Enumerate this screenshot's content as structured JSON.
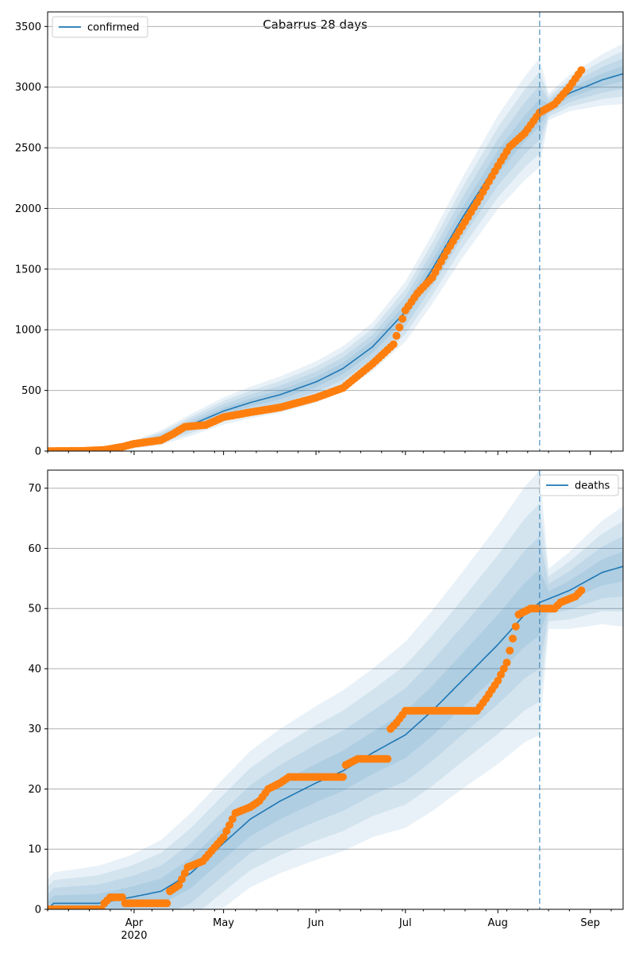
{
  "figure_title": "Cabarrus 28 days",
  "chart_data": [
    {
      "type": "line",
      "name": "confirmed",
      "series_name": "confirmed",
      "x_start": "2020-03-03",
      "x_end": "2020-09-12",
      "ylim": [
        0,
        3620
      ],
      "yticks": [
        0,
        500,
        1000,
        1500,
        2000,
        2500,
        3000,
        3500
      ],
      "xtick_labels": [
        "Apr",
        "May",
        "Jun",
        "Jul",
        "Aug",
        "Sep"
      ],
      "xtick_sublabel": "2020",
      "grid": "horizontal",
      "legend": "upper left",
      "forecast_start": "2020-08-15",
      "model_points": [
        [
          "2020-03-03",
          0
        ],
        [
          "2020-03-20",
          8
        ],
        [
          "2020-03-31",
          50
        ],
        [
          "2020-04-10",
          110
        ],
        [
          "2020-04-20",
          215
        ],
        [
          "2020-05-01",
          330
        ],
        [
          "2020-05-10",
          400
        ],
        [
          "2020-05-20",
          465
        ],
        [
          "2020-06-01",
          570
        ],
        [
          "2020-06-10",
          680
        ],
        [
          "2020-06-20",
          860
        ],
        [
          "2020-07-01",
          1150
        ],
        [
          "2020-07-10",
          1500
        ],
        [
          "2020-07-20",
          1920
        ],
        [
          "2020-08-01",
          2380
        ],
        [
          "2020-08-10",
          2660
        ],
        [
          "2020-08-15",
          2790
        ],
        [
          "2020-08-25",
          2950
        ],
        [
          "2020-09-05",
          3060
        ],
        [
          "2020-09-12",
          3110
        ]
      ],
      "band_width": [
        [
          "2020-03-03",
          4
        ],
        [
          "2020-03-31",
          30
        ],
        [
          "2020-04-20",
          90
        ],
        [
          "2020-05-20",
          150
        ],
        [
          "2020-06-20",
          200
        ],
        [
          "2020-07-20",
          330
        ],
        [
          "2020-08-15",
          450
        ],
        [
          "2020-08-18",
          110
        ],
        [
          "2020-09-12",
          250
        ]
      ],
      "observed_points": [
        [
          "2020-03-03",
          0
        ],
        [
          "2020-03-15",
          2
        ],
        [
          "2020-03-22",
          10
        ],
        [
          "2020-03-28",
          35
        ],
        [
          "2020-04-01",
          60
        ],
        [
          "2020-04-10",
          90
        ],
        [
          "2020-04-14",
          140
        ],
        [
          "2020-04-18",
          200
        ],
        [
          "2020-04-25",
          215
        ],
        [
          "2020-05-01",
          280
        ],
        [
          "2020-05-10",
          320
        ],
        [
          "2020-05-20",
          360
        ],
        [
          "2020-06-01",
          440
        ],
        [
          "2020-06-10",
          520
        ],
        [
          "2020-06-20",
          720
        ],
        [
          "2020-06-27",
          880
        ],
        [
          "2020-07-01",
          1160
        ],
        [
          "2020-07-05",
          1300
        ],
        [
          "2020-07-10",
          1430
        ],
        [
          "2020-07-15",
          1650
        ],
        [
          "2020-07-20",
          1850
        ],
        [
          "2020-07-25",
          2050
        ],
        [
          "2020-08-01",
          2350
        ],
        [
          "2020-08-05",
          2510
        ],
        [
          "2020-08-10",
          2620
        ],
        [
          "2020-08-15",
          2790
        ],
        [
          "2020-08-20",
          2860
        ],
        [
          "2020-08-25",
          3000
        ],
        [
          "2020-08-29",
          3140
        ]
      ]
    },
    {
      "type": "line",
      "name": "deaths",
      "series_name": "deaths",
      "x_start": "2020-03-03",
      "x_end": "2020-09-12",
      "ylim": [
        0,
        73
      ],
      "yticks": [
        0,
        10,
        20,
        30,
        40,
        50,
        60,
        70
      ],
      "xtick_labels": [
        "Apr",
        "May",
        "Jun",
        "Jul",
        "Aug",
        "Sep"
      ],
      "xtick_sublabel": "2020",
      "grid": "horizontal",
      "legend": "upper right",
      "forecast_start": "2020-08-15",
      "model_points": [
        [
          "2020-03-03",
          0
        ],
        [
          "2020-03-05",
          1
        ],
        [
          "2020-03-20",
          1
        ],
        [
          "2020-03-31",
          2
        ],
        [
          "2020-04-10",
          3
        ],
        [
          "2020-04-20",
          6
        ],
        [
          "2020-05-01",
          11
        ],
        [
          "2020-05-10",
          15
        ],
        [
          "2020-05-20",
          18
        ],
        [
          "2020-06-01",
          21
        ],
        [
          "2020-06-10",
          23
        ],
        [
          "2020-06-20",
          26
        ],
        [
          "2020-07-01",
          29
        ],
        [
          "2020-07-10",
          33
        ],
        [
          "2020-07-20",
          38
        ],
        [
          "2020-08-01",
          44
        ],
        [
          "2020-08-10",
          49
        ],
        [
          "2020-08-15",
          51
        ],
        [
          "2020-08-25",
          53
        ],
        [
          "2020-09-05",
          56
        ],
        [
          "2020-09-12",
          57
        ]
      ],
      "band_width": [
        [
          "2020-03-03",
          5
        ],
        [
          "2020-03-31",
          7
        ],
        [
          "2020-04-20",
          10
        ],
        [
          "2020-05-20",
          12
        ],
        [
          "2020-06-20",
          14
        ],
        [
          "2020-07-20",
          18
        ],
        [
          "2020-08-15",
          22
        ],
        [
          "2020-08-18",
          5
        ],
        [
          "2020-09-12",
          10
        ]
      ],
      "observed_points": [
        [
          "2020-03-03",
          0
        ],
        [
          "2020-03-21",
          0
        ],
        [
          "2020-03-22",
          1
        ],
        [
          "2020-03-24",
          2
        ],
        [
          "2020-03-28",
          2
        ],
        [
          "2020-03-29",
          1
        ],
        [
          "2020-04-12",
          1
        ],
        [
          "2020-04-13",
          3
        ],
        [
          "2020-04-16",
          4
        ],
        [
          "2020-04-19",
          7
        ],
        [
          "2020-04-24",
          8
        ],
        [
          "2020-05-01",
          12
        ],
        [
          "2020-05-05",
          16
        ],
        [
          "2020-05-10",
          17
        ],
        [
          "2020-05-13",
          18
        ],
        [
          "2020-05-16",
          20
        ],
        [
          "2020-05-20",
          21
        ],
        [
          "2020-05-23",
          22
        ],
        [
          "2020-06-10",
          22
        ],
        [
          "2020-06-11",
          24
        ],
        [
          "2020-06-15",
          25
        ],
        [
          "2020-06-25",
          25
        ],
        [
          "2020-06-26",
          30
        ],
        [
          "2020-06-28",
          31
        ],
        [
          "2020-07-01",
          33
        ],
        [
          "2020-07-25",
          33
        ],
        [
          "2020-07-28",
          35
        ],
        [
          "2020-08-01",
          38
        ],
        [
          "2020-08-04",
          41
        ],
        [
          "2020-08-06",
          45
        ],
        [
          "2020-08-08",
          49
        ],
        [
          "2020-08-12",
          50
        ],
        [
          "2020-08-20",
          50
        ],
        [
          "2020-08-22",
          51
        ],
        [
          "2020-08-27",
          52
        ],
        [
          "2020-08-29",
          53
        ]
      ]
    }
  ],
  "colors": {
    "model_line": "#1f77b4",
    "band": "#1f77b4",
    "observed": "#ff7f0e",
    "grid": "#b0b0b0",
    "forecast_line": "#1f77b4"
  }
}
